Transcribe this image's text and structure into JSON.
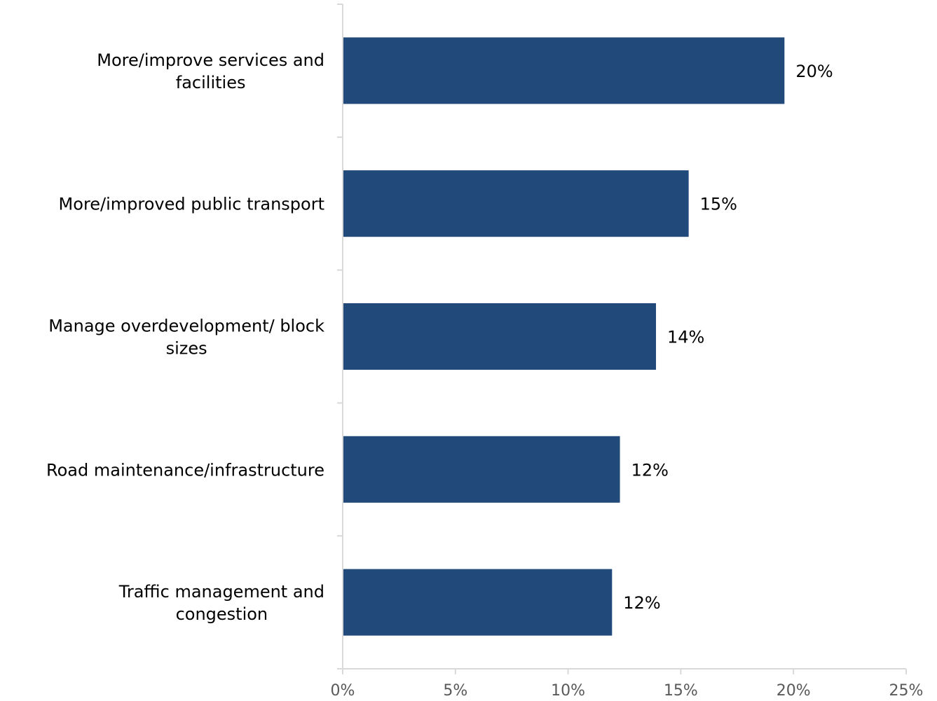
{
  "chart_data": {
    "type": "bar",
    "orientation": "horizontal",
    "categories": [
      [
        "More/improve services and",
        "facilities"
      ],
      [
        "More/improved public transport"
      ],
      [
        "Manage overdevelopment/ block",
        "sizes"
      ],
      [
        "Road maintenance/infrastructure"
      ],
      [
        "Traffic management and",
        "congestion"
      ]
    ],
    "values": [
      19.6,
      15.35,
      13.9,
      12.3,
      11.95
    ],
    "data_labels": [
      "20%",
      "15%",
      "14%",
      "12%",
      "12%"
    ],
    "xlim": [
      0,
      25
    ],
    "x_ticks": [
      0,
      5,
      10,
      15,
      20,
      25
    ],
    "x_tick_labels": [
      "0%",
      "5%",
      "10%",
      "15%",
      "20%",
      "25%"
    ],
    "grid": false,
    "legend": "none",
    "colors": {
      "bar": "#21497A",
      "axis": "#D9D9D9",
      "text": "#000000",
      "tick_text": "#595959"
    }
  }
}
